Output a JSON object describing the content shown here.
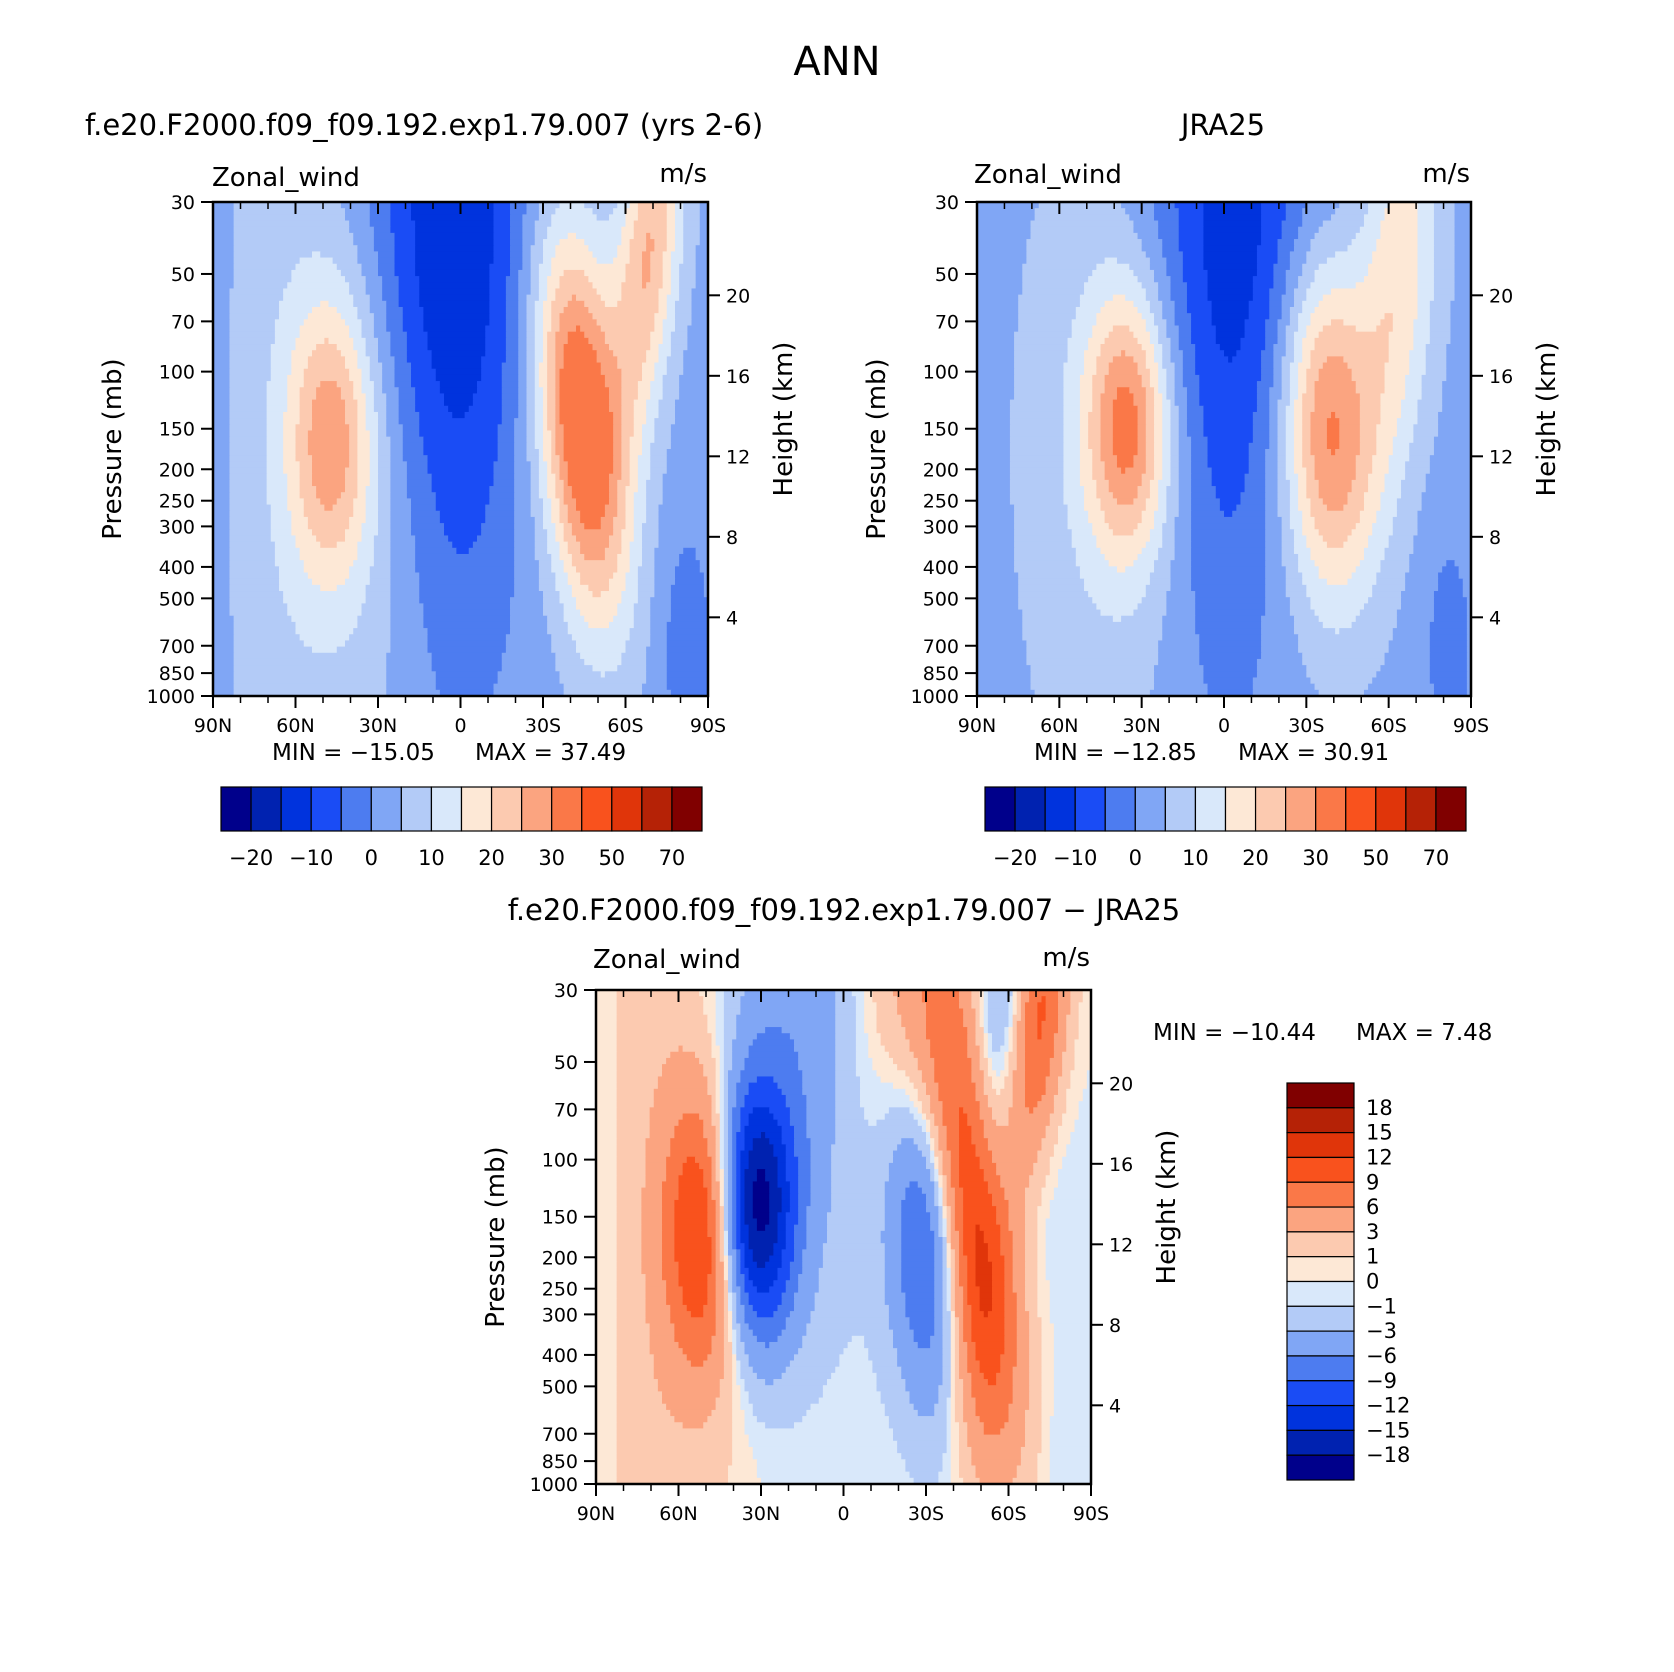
{
  "page_title": "ANN",
  "units_label": "m/s",
  "variable_label": "Zonal_wind",
  "yaxis_left_label": "Pressure (mb)",
  "yaxis_right_label": "Height (km)",
  "pressure_ticks": [
    "30",
    "50",
    "70",
    "100",
    "150",
    "200",
    "250",
    "300",
    "400",
    "500",
    "700",
    "850",
    "1000"
  ],
  "height_ticks": [
    "20",
    "16",
    "12",
    "8",
    "4"
  ],
  "lat_ticks": [
    "90N",
    "60N",
    "30N",
    "0",
    "30S",
    "60S",
    "90S"
  ],
  "colors": {
    "wind": [
      "#00008b",
      "#0022b0",
      "#0033dd",
      "#1a4cf5",
      "#4d7cf0",
      "#80a6f5",
      "#b3cbf7",
      "#d9e8fa",
      "#fde8d6",
      "#fccab0",
      "#fba480",
      "#fa7848",
      "#f9521d",
      "#e0350a",
      "#b52206",
      "#800000"
    ],
    "diff": [
      "#00008b",
      "#0022b0",
      "#0033dd",
      "#1a4cf5",
      "#4d7cf0",
      "#80a6f5",
      "#b3cbf7",
      "#d9e8fa",
      "#fde8d6",
      "#fccab0",
      "#fba480",
      "#fa7848",
      "#f9521d",
      "#e0350a",
      "#b52206",
      "#800000"
    ]
  },
  "chart_data": [
    {
      "type": "heatmap",
      "title": "f.e20.F2000.f09_f09.192.exp1.79.007 (yrs 2-6)",
      "variable": "Zonal_wind",
      "units": "m/s",
      "xlabel": "",
      "ylabel": "Pressure (mb)",
      "ylabel_right": "Height (km)",
      "xlim": [
        -90,
        90
      ],
      "ylim_pressure": [
        1000,
        30
      ],
      "y_scale": "log",
      "min_label": "MIN = −15.05",
      "max_label": "MAX =   37.49",
      "min": -15.05,
      "max": 37.49,
      "levels": [
        -25,
        -20,
        -15,
        -10,
        -5,
        0,
        5,
        10,
        15,
        20,
        25,
        30,
        40,
        50,
        60,
        70
      ],
      "colorbar_ticks": [
        "−20",
        "−10",
        "0",
        "10",
        "20",
        "30",
        "50",
        "70"
      ],
      "features": [
        {
          "lat": 45,
          "p": 200,
          "value": 23
        },
        {
          "lat": -50,
          "p": 200,
          "value": 37
        },
        {
          "lat": 0,
          "p": 50,
          "value": -14
        }
      ]
    },
    {
      "type": "heatmap",
      "title": "JRA25",
      "variable": "Zonal_wind",
      "units": "m/s",
      "xlabel": "",
      "ylabel": "Pressure (mb)",
      "ylabel_right": "Height (km)",
      "xlim": [
        -90,
        90
      ],
      "ylim_pressure": [
        1000,
        30
      ],
      "y_scale": "log",
      "min_label": "MIN = −12.85",
      "max_label": "MAX =   30.91",
      "min": -12.85,
      "max": 30.91,
      "levels": [
        -25,
        -20,
        -15,
        -10,
        -5,
        0,
        5,
        10,
        15,
        20,
        25,
        30,
        40,
        50,
        60,
        70
      ],
      "colorbar_ticks": [
        "−20",
        "−10",
        "0",
        "10",
        "20",
        "30",
        "50",
        "70"
      ],
      "features": [
        {
          "lat": 35,
          "p": 200,
          "value": 28
        },
        {
          "lat": -35,
          "p": 200,
          "value": 31
        },
        {
          "lat": 10,
          "p": 40,
          "value": -12
        }
      ]
    },
    {
      "type": "heatmap",
      "title": "f.e20.F2000.f09_f09.192.exp1.79.007 − JRA25",
      "variable": "Zonal_wind",
      "units": "m/s",
      "xlabel": "",
      "ylabel": "Pressure (mb)",
      "ylabel_right": "Height (km)",
      "xlim": [
        -90,
        90
      ],
      "ylim_pressure": [
        1000,
        30
      ],
      "y_scale": "log",
      "min_label": "MIN = −10.44",
      "max_label": "MAX =     7.48",
      "min": -10.44,
      "max": 7.48,
      "levels": [
        -18,
        -15,
        -12,
        -9,
        -6,
        -3,
        -1,
        0,
        1,
        3,
        6,
        9,
        12,
        15,
        18
      ],
      "colorbar_ticks": [
        "18",
        "15",
        "12",
        "9",
        "6",
        "3",
        "1",
        "0",
        "−1",
        "−3",
        "−6",
        "−9",
        "−12",
        "−15",
        "−18"
      ],
      "features": [
        {
          "lat": -65,
          "p": 40,
          "value": 7
        },
        {
          "lat": 0,
          "p": 55,
          "value": -10
        }
      ]
    }
  ]
}
